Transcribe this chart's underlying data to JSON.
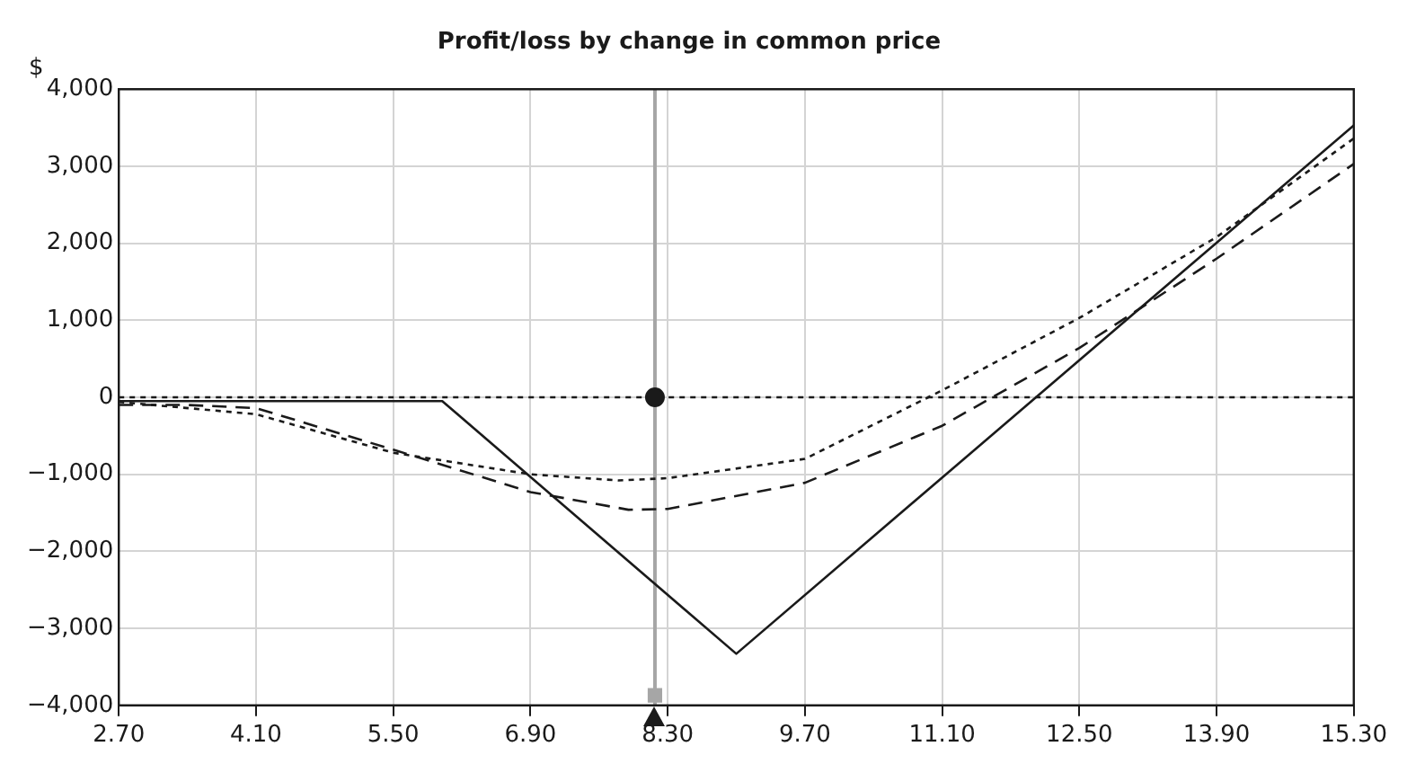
{
  "chart_data": {
    "type": "line",
    "title": "Profit/loss by change in common price",
    "ylabel": "$",
    "xlim": [
      2.7,
      15.3
    ],
    "xticks": [
      {
        "value": 2.7,
        "label": "2.70"
      },
      {
        "value": 4.1,
        "label": "4.10"
      },
      {
        "value": 5.5,
        "label": "5.50"
      },
      {
        "value": 6.9,
        "label": "6.90"
      },
      {
        "value": 8.3,
        "label": "8.30"
      },
      {
        "value": 9.7,
        "label": "9.70"
      },
      {
        "value": 11.1,
        "label": "11.10"
      },
      {
        "value": 12.5,
        "label": "12.50"
      },
      {
        "value": 13.9,
        "label": "13.90"
      },
      {
        "value": 15.3,
        "label": "15.30"
      }
    ],
    "ylim": [
      -4000,
      4000
    ],
    "yticks": [
      {
        "value": -4000,
        "label": "−4,000"
      },
      {
        "value": -3000,
        "label": "−3,000"
      },
      {
        "value": -2000,
        "label": "−2,000"
      },
      {
        "value": -1000,
        "label": "−1,000"
      },
      {
        "value": 0,
        "label": "0"
      },
      {
        "value": 1000,
        "label": "1,000"
      },
      {
        "value": 2000,
        "label": "2,000"
      },
      {
        "value": 3000,
        "label": "3,000"
      },
      {
        "value": 4000,
        "label": "4,000"
      }
    ],
    "grid": true,
    "marker": "none",
    "series": [
      {
        "color": "#1a1a1a",
        "line_style": "solid",
        "x": [
          2.7,
          6.0,
          9.0,
          15.3
        ],
        "values": [
          -50,
          -50,
          -3330,
          3530
        ]
      },
      {
        "color": "#1a1a1a",
        "line_style": "dotted",
        "x": [
          2.7,
          4.1,
          5.5,
          6.9,
          7.8,
          8.3,
          9.7,
          11.1,
          12.5,
          13.9,
          15.3
        ],
        "values": [
          -60,
          -220,
          -720,
          -1000,
          -1080,
          -1050,
          -800,
          90,
          1030,
          2080,
          3360
        ]
      },
      {
        "color": "#1a1a1a",
        "line_style": "dashed",
        "x": [
          2.7,
          3.4,
          4.1,
          5.5,
          6.9,
          7.9,
          8.3,
          9.7,
          11.1,
          12.5,
          13.9,
          15.3
        ],
        "values": [
          -100,
          -100,
          -140,
          -680,
          -1230,
          -1460,
          -1450,
          -1110,
          -370,
          640,
          1800,
          3030
        ]
      },
      {
        "type": "scatter",
        "color": "#1a1a1a",
        "marker": "circle",
        "x": [
          8.17
        ],
        "values": [
          0
        ]
      },
      {
        "type": "scatter",
        "color": "#a6a6a6",
        "marker": "square",
        "x": [
          8.17
        ],
        "values": [
          -3870
        ]
      }
    ],
    "ref_lines": [
      {
        "axis": "y",
        "value": 0,
        "color": "#1a1a1a",
        "line_style": "dotted"
      },
      {
        "axis": "x",
        "value": 8.17,
        "color": "#a6a6a6",
        "line_style": "solid"
      }
    ]
  }
}
